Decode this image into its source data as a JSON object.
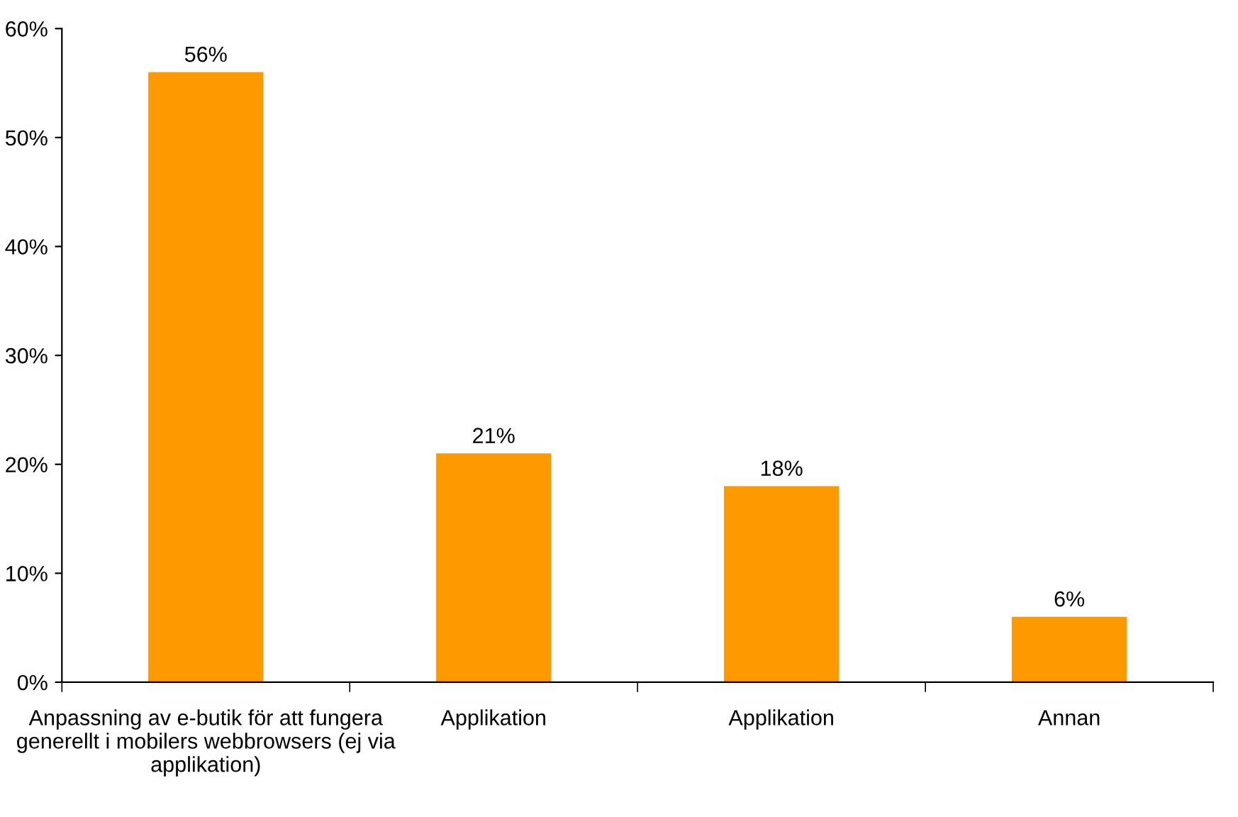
{
  "chart_data": {
    "type": "bar",
    "categories": [
      "Anpassning av e-butik för att fungera generellt i mobilers webbrowsers (ej via applikation)",
      "Applikation",
      "Applikation",
      "Annan"
    ],
    "values": [
      56,
      21,
      18,
      6
    ],
    "value_labels": [
      "56%",
      "21%",
      "18%",
      "6%"
    ],
    "color": "#ff9900",
    "ylim": [
      0,
      60
    ],
    "yticks": [
      {
        "value": 0,
        "label": "0%"
      },
      {
        "value": 10,
        "label": "10%"
      },
      {
        "value": 20,
        "label": "20%"
      },
      {
        "value": 30,
        "label": "30%"
      },
      {
        "value": 40,
        "label": "40%"
      },
      {
        "value": 50,
        "label": "50%"
      },
      {
        "value": 60,
        "label": "60%"
      }
    ],
    "grid": false,
    "legend": false
  }
}
